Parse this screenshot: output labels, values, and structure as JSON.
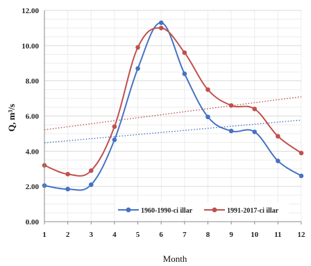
{
  "chart_data": {
    "type": "line",
    "x": [
      1,
      2,
      3,
      4,
      5,
      6,
      7,
      8,
      9,
      10,
      11,
      12
    ],
    "series": [
      {
        "name": "1960-1990-ci illar",
        "color": "#4472c4",
        "values": [
          2.05,
          1.85,
          2.1,
          4.65,
          8.7,
          11.3,
          8.4,
          5.95,
          5.15,
          5.1,
          3.45,
          2.6
        ],
        "trendline": [
          4.48,
          5.77
        ]
      },
      {
        "name": "1991-2017-ci illar",
        "color": "#c0504d",
        "values": [
          3.2,
          2.7,
          2.9,
          5.4,
          9.9,
          11.0,
          9.6,
          7.5,
          6.6,
          6.4,
          4.85,
          3.9
        ],
        "trendline": [
          5.22,
          7.1
        ]
      }
    ],
    "xlabel": "Month",
    "ylabel": "Q, m³/s",
    "ylim": [
      0,
      12
    ],
    "yticks": [
      "0.00",
      "2.00",
      "4.00",
      "6.00",
      "8.00",
      "10.00",
      "12.00"
    ],
    "xticks": [
      "1",
      "2",
      "3",
      "4",
      "5",
      "6",
      "7",
      "8",
      "9",
      "10",
      "11",
      "12"
    ],
    "grid": true,
    "legend": "bottom-right"
  }
}
